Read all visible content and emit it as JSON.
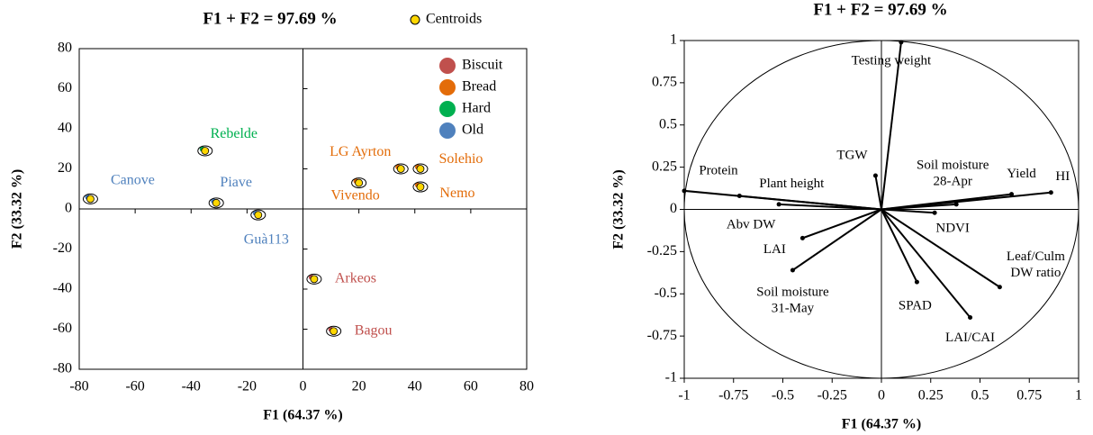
{
  "chart_data": [
    {
      "type": "scatter",
      "title": "F1 + F2  =  97.69 %",
      "legend_marker": "Centroids",
      "marker_color": "#ffd700",
      "x_label": "F1 (64.37 %)",
      "y_label": "F2 (33.32 %)",
      "xlim": [
        -80,
        80
      ],
      "xticks": [
        -80,
        -60,
        -40,
        -20,
        0,
        20,
        40,
        60,
        80
      ],
      "ylim": [
        -80,
        80
      ],
      "yticks": [
        -80,
        -60,
        -40,
        -20,
        0,
        20,
        40,
        60,
        80
      ],
      "series": [
        {
          "name": "Biscuit",
          "color": "#c0504d",
          "labels": [
            "Arkeos",
            "Bagou"
          ],
          "x": [
            4,
            11
          ],
          "values": [
            -35,
            -61
          ]
        },
        {
          "name": "Bread",
          "color": "#e36c09",
          "labels": [
            "LG Ayrton",
            "Solehio",
            "Vivendo",
            "Nemo"
          ],
          "x": [
            35,
            42,
            20,
            42
          ],
          "values": [
            20,
            20,
            13,
            11
          ]
        },
        {
          "name": "Hard",
          "color": "#00b050",
          "labels": [
            "Rebelde"
          ],
          "x": [
            -35
          ],
          "values": [
            29
          ]
        },
        {
          "name": "Old",
          "color": "#4f81bd",
          "labels": [
            "Canove",
            "Piave",
            "Guà113"
          ],
          "x": [
            -76,
            -31,
            -16
          ],
          "values": [
            5,
            3,
            -3
          ]
        }
      ]
    },
    {
      "type": "biplot",
      "title": "F1 + F2 = 97.69 %",
      "x_label": "F1 (64.37 %)",
      "y_label": "F2 (33.32 %)",
      "xlim": [
        -1,
        1
      ],
      "xticks": [
        -1,
        -0.75,
        -0.5,
        -0.25,
        0,
        0.25,
        0.5,
        0.75,
        1
      ],
      "ylim": [
        -1,
        1
      ],
      "yticks": [
        -1,
        -0.75,
        -0.5,
        -0.25,
        0,
        0.25,
        0.5,
        0.75,
        1
      ],
      "variables": [
        [
          "Testing weight"
        ],
        [
          "Protein"
        ],
        [
          "Plant height"
        ],
        [
          "TGW"
        ],
        [
          "Abv DW"
        ],
        [
          "LAI"
        ],
        [
          "Soil moisture",
          "31-May"
        ],
        [
          "Soil moisture",
          "28-Apr"
        ],
        [
          "Yield"
        ],
        [
          "HI"
        ],
        [
          "NDVI"
        ],
        [
          "Leaf/Culm",
          "DW ratio"
        ],
        [
          "SPAD"
        ],
        [
          "LAI/CAI"
        ]
      ],
      "x": [
        0.1,
        -1.0,
        -0.72,
        -0.03,
        -0.52,
        -0.4,
        -0.45,
        0.38,
        0.66,
        0.86,
        0.27,
        0.6,
        0.18,
        0.45
      ],
      "values": [
        0.99,
        0.11,
        0.08,
        0.2,
        0.03,
        -0.17,
        -0.36,
        0.03,
        0.09,
        0.1,
        -0.02,
        -0.46,
        -0.43,
        -0.64
      ]
    }
  ]
}
